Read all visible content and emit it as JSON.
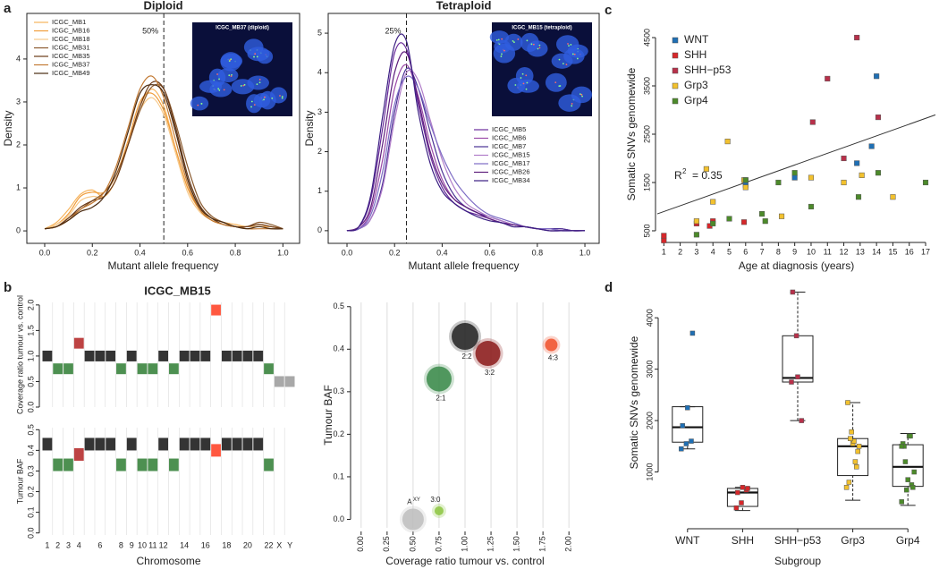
{
  "panel_labels": [
    "a",
    "b",
    "c",
    "d"
  ],
  "chart_data": [
    {
      "type": "line",
      "title": "Diploid",
      "xlabel": "Mutant allele frequency",
      "ylabel": "Density",
      "annotation": "50%",
      "vline": 0.5,
      "inset_label": "ICGC_MB37 (diploid)",
      "legend": "upper left",
      "xlim": [
        -0.075,
        1.07
      ],
      "ylim": [
        -0.29,
        5.06
      ],
      "xticks": [
        {
          "value": 0,
          "label": "0.0"
        },
        0.2,
        0.4,
        0.6,
        0.8,
        {
          "value": 1,
          "label": "1.0"
        }
      ],
      "yticks": [
        0,
        1,
        2,
        3,
        4
      ],
      "x": [
        0,
        0.05,
        0.1,
        0.15,
        0.2,
        0.25,
        0.3,
        0.35,
        0.4,
        0.45,
        0.5,
        0.55,
        0.6,
        0.65,
        0.7,
        0.75,
        0.8,
        0.85,
        0.9,
        0.95,
        1.0
      ],
      "series": [
        {
          "name": "ICGC_MB1",
          "color": "#f6b35c",
          "values": [
            0.05,
            0.2,
            0.5,
            0.85,
            0.95,
            0.8,
            1.2,
            2.0,
            2.9,
            3.3,
            2.9,
            1.9,
            1.0,
            0.5,
            0.3,
            0.2,
            0.15,
            0.1,
            0.15,
            0.1,
            0.05
          ]
        },
        {
          "name": "ICGC_MB16",
          "color": "#ef9c3a",
          "values": [
            0.05,
            0.15,
            0.4,
            0.8,
            0.9,
            0.9,
            1.3,
            2.1,
            3.0,
            3.2,
            2.8,
            1.9,
            1.0,
            0.5,
            0.25,
            0.15,
            0.1,
            0.1,
            0.1,
            0.1,
            0.05
          ]
        },
        {
          "name": "ICGC_MB18",
          "color": "#f7c98a",
          "values": [
            0.05,
            0.15,
            0.35,
            0.7,
            0.8,
            0.8,
            1.2,
            2.0,
            2.8,
            3.1,
            2.7,
            1.8,
            0.9,
            0.45,
            0.25,
            0.15,
            0.1,
            0.1,
            0.1,
            0.05,
            0.05
          ]
        },
        {
          "name": "ICGC_MB31",
          "color": "#8a5a2e",
          "values": [
            0.05,
            0.1,
            0.3,
            0.5,
            0.7,
            0.9,
            1.3,
            2.0,
            2.8,
            3.35,
            3.3,
            2.5,
            1.5,
            0.7,
            0.35,
            0.2,
            0.1,
            0.1,
            0.2,
            0.15,
            0.05
          ]
        },
        {
          "name": "ICGC_MB35",
          "color": "#6b3a18",
          "values": [
            0.05,
            0.1,
            0.3,
            0.55,
            0.7,
            0.8,
            1.2,
            2.0,
            2.9,
            3.45,
            3.3,
            2.4,
            1.3,
            0.6,
            0.3,
            0.15,
            0.1,
            0.1,
            0.15,
            0.1,
            0.05
          ]
        },
        {
          "name": "ICGC_MB37",
          "color": "#c27a34",
          "values": [
            0.05,
            0.1,
            0.25,
            0.5,
            0.65,
            0.9,
            1.5,
            2.4,
            3.3,
            3.6,
            3.1,
            2.1,
            1.1,
            0.5,
            0.25,
            0.15,
            0.1,
            0.05,
            0.05,
            0.05,
            0.05
          ]
        },
        {
          "name": "ICGC_MB49",
          "color": "#4a2a10",
          "values": [
            0.05,
            0.1,
            0.25,
            0.45,
            0.55,
            0.8,
            1.4,
            2.3,
            3.2,
            3.4,
            3.2,
            2.3,
            1.2,
            0.55,
            0.3,
            0.2,
            0.1,
            0.05,
            0.1,
            0.05,
            0.05
          ]
        }
      ]
    },
    {
      "type": "line",
      "title": "Tetraploid",
      "xlabel": "Mutant allele frequency",
      "ylabel": "Density",
      "annotation": "25%",
      "vline": 0.25,
      "inset_label": "ICGC_MB15 (tetraploid)",
      "legend": "right",
      "xlim": [
        -0.079,
        1.06
      ],
      "ylim": [
        -0.32,
        5.5
      ],
      "xticks": [
        {
          "value": 0,
          "label": "0.0"
        },
        0.2,
        0.4,
        0.6,
        0.8,
        {
          "value": 1,
          "label": "1.0"
        }
      ],
      "yticks": [
        0,
        1,
        2,
        3,
        4,
        5
      ],
      "x": [
        0,
        0.05,
        0.1,
        0.15,
        0.2,
        0.25,
        0.3,
        0.35,
        0.4,
        0.45,
        0.5,
        0.55,
        0.6,
        0.65,
        0.7,
        0.75,
        0.8,
        0.85,
        0.9,
        0.95,
        1.0
      ],
      "series": [
        {
          "name": "ICGC_MB5",
          "color": "#6a2c9c",
          "values": [
            0,
            0.1,
            0.8,
            2.6,
            4.5,
            4.6,
            3.2,
            1.9,
            1.1,
            0.7,
            0.5,
            0.4,
            0.3,
            0.2,
            0.15,
            0.1,
            0.05,
            0.05,
            0.05,
            0,
            0
          ]
        },
        {
          "name": "ICGC_MB6",
          "color": "#9b4aa8",
          "values": [
            0,
            0.05,
            0.5,
            1.8,
            3.6,
            4.2,
            3.4,
            2.2,
            1.3,
            0.8,
            0.6,
            0.45,
            0.3,
            0.2,
            0.15,
            0.1,
            0.05,
            0.05,
            0.05,
            0,
            0
          ]
        },
        {
          "name": "ICGC_MB7",
          "color": "#4a3294",
          "values": [
            0,
            0.05,
            0.3,
            1.2,
            3.0,
            4.1,
            3.6,
            2.5,
            1.5,
            0.9,
            0.6,
            0.45,
            0.35,
            0.25,
            0.15,
            0.1,
            0.05,
            0.05,
            0.05,
            0,
            0
          ]
        },
        {
          "name": "ICGC_MB15",
          "color": "#b07cc8",
          "values": [
            0,
            0.05,
            0.3,
            1.1,
            2.8,
            4.0,
            3.8,
            2.8,
            1.8,
            1.1,
            0.7,
            0.5,
            0.35,
            0.25,
            0.15,
            0.1,
            0.05,
            0.05,
            0,
            0,
            0
          ]
        },
        {
          "name": "ICGC_MB17",
          "color": "#7d6cc4",
          "values": [
            0,
            0.05,
            0.4,
            1.5,
            3.2,
            3.9,
            3.6,
            2.7,
            1.9,
            1.3,
            0.9,
            0.6,
            0.4,
            0.3,
            0.2,
            0.1,
            0.05,
            0.05,
            0,
            0,
            0
          ]
        },
        {
          "name": "ICGC_MB26",
          "color": "#5e1f7c",
          "values": [
            0,
            0.1,
            0.6,
            2.2,
            4.0,
            4.5,
            3.3,
            2.0,
            1.2,
            0.8,
            0.6,
            0.45,
            0.3,
            0.2,
            0.15,
            0.1,
            0.05,
            0,
            0,
            0,
            0
          ]
        },
        {
          "name": "ICGC_MB34",
          "color": "#3b1e82",
          "values": [
            0,
            0.1,
            0.9,
            2.9,
            4.7,
            4.8,
            3.0,
            1.7,
            1.0,
            0.7,
            0.5,
            0.35,
            0.25,
            0.2,
            0.1,
            0.1,
            0.05,
            0,
            0,
            0,
            0
          ]
        }
      ]
    },
    {
      "type": "segments",
      "title": "ICGC_MB15",
      "xlabel": "Chromosome",
      "categories": [
        "1",
        "2",
        "3",
        "4",
        null,
        "6",
        null,
        "8",
        "9",
        "10",
        "11",
        "12",
        null,
        "14",
        null,
        "16",
        null,
        "18",
        null,
        "20",
        null,
        "22",
        "X",
        "Y"
      ],
      "colors": [
        "#111",
        "#2e7d32",
        "#2e7d32",
        "#b22222",
        "#111",
        "#111",
        "#111",
        "#2e7d32",
        "#111",
        "#2e7d32",
        "#2e7d32",
        "#111",
        "#2e7d32",
        "#111",
        "#111",
        "#111",
        "#ff3b1f",
        "#111",
        "#111",
        "#111",
        "#111",
        "#2e7d32",
        "#999",
        "#999"
      ],
      "panels": [
        {
          "ylabel": "Coverage ratio tumour vs. control",
          "ylim": [
            0,
            2.05
          ],
          "yticks": [
            {
              "value": 0,
              "label": "0.0"
            },
            0.5,
            {
              "value": 1,
              "label": "1.0"
            },
            1.5,
            {
              "value": 2,
              "label": "2.0"
            }
          ],
          "values": [
            1.0,
            0.75,
            0.75,
            1.25,
            1.0,
            1.0,
            1.0,
            0.75,
            1.0,
            0.75,
            0.75,
            1.0,
            0.75,
            1.0,
            1.0,
            1.0,
            1.9,
            1.0,
            1.0,
            1.0,
            1.0,
            0.75,
            0.5,
            0.5
          ]
        },
        {
          "ylabel": "Tumour BAF",
          "ylim": [
            -0.01,
            0.51
          ],
          "yticks": [
            {
              "value": 0,
              "label": "0.0"
            },
            0.1,
            0.2,
            0.3,
            0.4,
            0.5
          ],
          "values": [
            0.43,
            0.33,
            0.33,
            0.38,
            0.43,
            0.43,
            0.43,
            0.33,
            0.43,
            0.33,
            0.33,
            0.43,
            0.33,
            0.43,
            0.43,
            0.43,
            0.4,
            0.43,
            0.43,
            0.43,
            0.43,
            0.33,
            null,
            null
          ]
        }
      ]
    },
    {
      "type": "bubble",
      "xlabel": "Coverage ratio tumour vs. control",
      "ylabel": "Tumour BAF",
      "grid": true,
      "xlim": [
        -0.05,
        2.05
      ],
      "ylim": [
        -0.02,
        0.51
      ],
      "xticks": [
        {
          "value": 0,
          "label": "0.00"
        },
        0.25,
        {
          "value": 0.5,
          "label": "0.50"
        },
        0.75,
        {
          "value": 1,
          "label": "1.00"
        },
        1.25,
        {
          "value": 1.5,
          "label": "1.50"
        },
        1.75,
        {
          "value": 2,
          "label": "2.00"
        }
      ],
      "yticks": [
        {
          "value": 0,
          "label": "0.0"
        },
        0.1,
        0.2,
        0.3,
        0.4,
        0.5
      ],
      "x": [
        0.5,
        0.75,
        0.75,
        1.0,
        1.22,
        1.83
      ],
      "values": [
        0.0,
        0.02,
        0.33,
        0.43,
        0.39,
        0.41
      ],
      "sizes": [
        12,
        5,
        14,
        15,
        14,
        7
      ],
      "colors": [
        "#bdbdbd",
        "#8cc63f",
        "#3a8a4a",
        "#222222",
        "#8b1a1a",
        "#f0502a"
      ],
      "labels": [
        "A",
        "3:0",
        "2:1",
        "2:2",
        "3:2",
        "4:3"
      ],
      "label_sup": [
        "XY",
        null,
        null,
        null,
        null,
        null
      ]
    },
    {
      "type": "scatter",
      "xlabel": "Age at diagnosis (years)",
      "ylabel": "Somatic SNVs genomewide",
      "legend": "upper left",
      "annotation": {
        "text": "R",
        "sup": "2",
        "rest": "= 0.35"
      },
      "fit": {
        "x": [
          0.6,
          17.6
        ],
        "y": [
          850,
          2900
        ]
      },
      "xlim": [
        0.6,
        17.6
      ],
      "ylim": [
        370,
        4630
      ],
      "xticks": [
        1,
        2,
        3,
        4,
        5,
        6,
        7,
        8,
        9,
        10,
        11,
        12,
        13,
        14,
        15,
        16,
        17
      ],
      "yticks": [
        500,
        1500,
        2500,
        3500,
        4500
      ],
      "series": [
        {
          "name": "WNT",
          "color": "#1f6fb4",
          "x": [
            6,
            6,
            9,
            12.8,
            13.7,
            14
          ],
          "values": [
            1450,
            1550,
            1600,
            1900,
            2250,
            3700
          ]
        },
        {
          "name": "SHH",
          "color": "#d6272a",
          "x": [
            1,
            1,
            3,
            3.8,
            4,
            5.9
          ],
          "values": [
            300,
            400,
            650,
            600,
            700,
            680
          ]
        },
        {
          "name": "SHH−p53",
          "color": "#b8304a",
          "x": [
            10.1,
            11,
            12,
            12.8,
            14.1
          ],
          "values": [
            2750,
            3650,
            2000,
            4500,
            2850
          ]
        },
        {
          "name": "Grp3",
          "color": "#f2c12e",
          "x": [
            3,
            3.6,
            4,
            4.9,
            5.9,
            6,
            8.2,
            10,
            12,
            13.1,
            15
          ],
          "values": [
            700,
            1780,
            1100,
            2350,
            1550,
            1400,
            800,
            1600,
            1500,
            1650,
            1200
          ]
        },
        {
          "name": "Grp4",
          "color": "#4c8a2a",
          "x": [
            3,
            4,
            5,
            6,
            7,
            7.2,
            8,
            9,
            10,
            12.9,
            14.1,
            17
          ],
          "values": [
            420,
            650,
            750,
            1550,
            850,
            700,
            1500,
            1700,
            1000,
            1200,
            1700,
            1500
          ]
        }
      ]
    },
    {
      "type": "box",
      "xlabel": "Subgroup",
      "ylabel": "Somatic SNVs genomewide",
      "ylim": [
        0,
        4700
      ],
      "yticks": [
        1000,
        2000,
        3000,
        4000
      ],
      "categories": [
        "WNT",
        "SHH",
        "SHH−p53",
        "Grp3",
        "Grp4"
      ],
      "boxes": [
        {
          "low": 1450,
          "q1": 1580,
          "median": 1870,
          "q3": 2270,
          "high": 2270
        },
        {
          "low": 250,
          "q1": 330,
          "median": 600,
          "q3": 680,
          "high": 700
        },
        {
          "low": 2000,
          "q1": 2750,
          "median": 2830,
          "q3": 3650,
          "high": 4500
        },
        {
          "low": 450,
          "q1": 930,
          "median": 1500,
          "q3": 1650,
          "high": 2350
        },
        {
          "low": 350,
          "q1": 720,
          "median": 1100,
          "q3": 1530,
          "high": 1750
        }
      ]
    }
  ]
}
